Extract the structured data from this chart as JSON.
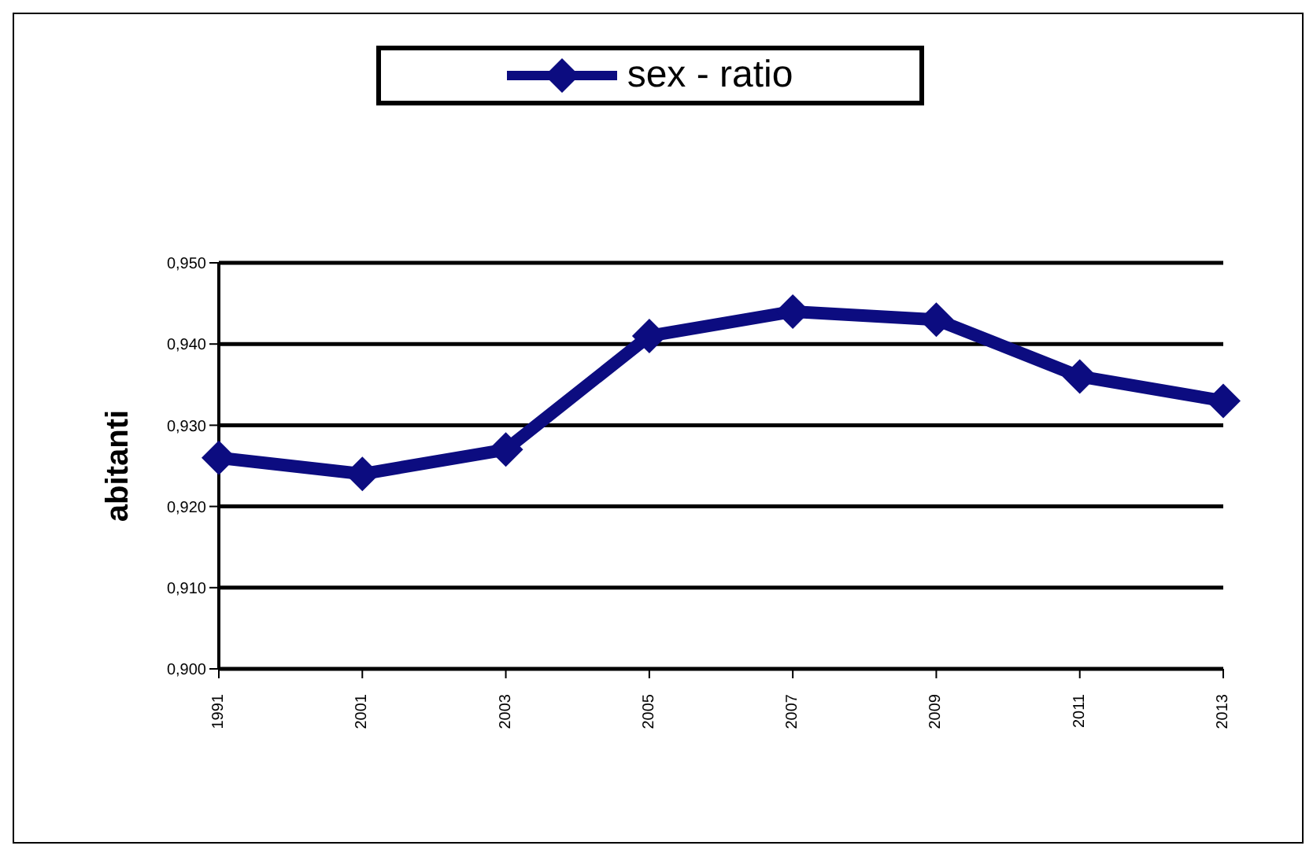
{
  "chart_data": {
    "type": "line",
    "ylabel": "abitanti",
    "categories": [
      "1991",
      "2001",
      "2003",
      "2005",
      "2007",
      "2009",
      "2011",
      "2013"
    ],
    "series": [
      {
        "name": "sex - ratio",
        "color": "#0c0c80",
        "values": [
          0.926,
          0.924,
          0.927,
          0.941,
          0.944,
          0.943,
          0.936,
          0.933
        ]
      }
    ],
    "ylim": [
      0.9,
      0.95
    ],
    "yticks": [
      {
        "value": 0.9,
        "label": "0,900"
      },
      {
        "value": 0.91,
        "label": "0,910"
      },
      {
        "value": 0.92,
        "label": "0,920"
      },
      {
        "value": 0.93,
        "label": "0,930"
      },
      {
        "value": 0.94,
        "label": "0,940"
      },
      {
        "value": 0.95,
        "label": "0,950"
      }
    ],
    "grid": "y",
    "legend": "top",
    "marker": "diamond",
    "line_style": "solid"
  }
}
